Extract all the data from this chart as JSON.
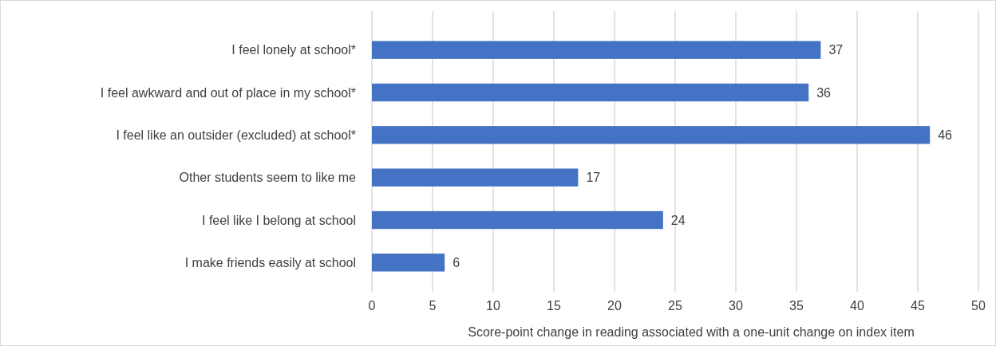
{
  "chart_data": {
    "type": "bar",
    "orientation": "horizontal",
    "categories": [
      "I feel lonely at school*",
      "I feel awkward and out of place in my school*",
      "I feel like an outsider (excluded) at school*",
      "Other students seem to like me",
      "I feel like I belong at school",
      "I make friends easily at school"
    ],
    "values": [
      37,
      36,
      46,
      17,
      24,
      6
    ],
    "color": "#4472c4",
    "xlim": [
      0,
      50
    ],
    "xticks": [
      0,
      5,
      10,
      15,
      20,
      25,
      30,
      35,
      40,
      45,
      50
    ],
    "grid": "x",
    "data_labels": true,
    "xlabel": "Score-point change in reading associated with a one-unit change on index item"
  }
}
